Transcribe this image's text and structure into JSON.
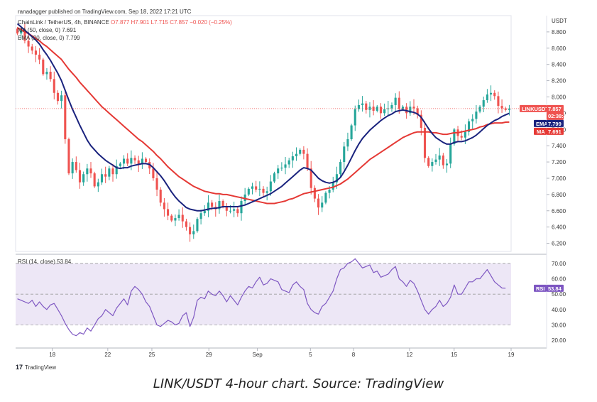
{
  "header": {
    "publisher": "ranadagger published on TradingView.com, Sep 18, 2022 17:21 UTC"
  },
  "legend": {
    "symbol": "ChainLink / TetherUS, 4h, BINANCE",
    "ohlc": "O7.877  H7.901  L7.715  C7.857  −0.020 (−0.25%)",
    "ma": "MA (50, close, 0)  7.691",
    "ema": "EMA (20, close, 0)  7.799",
    "rsi": "RSI (14, close)  53.84"
  },
  "price_axis": {
    "currency": "USDT",
    "ticks": [
      "8.800",
      "8.600",
      "8.400",
      "8.200",
      "8.000",
      "7.800",
      "7.600",
      "7.400",
      "7.200",
      "7.000",
      "6.800",
      "6.600",
      "6.400",
      "6.200"
    ]
  },
  "rsi_axis": {
    "ticks": [
      "70.00",
      "60.00",
      "50.00",
      "40.00",
      "30.00",
      "20.00"
    ]
  },
  "price_labels": {
    "last": {
      "text": "LINKUSDT",
      "value": "7.857",
      "timer": "02:38:47",
      "color": "#ef5350"
    },
    "ema": {
      "text": "EMA",
      "value": "7.799",
      "color": "#1a237e"
    },
    "ma": {
      "text": "MA",
      "value": "7.691",
      "color": "#e53935"
    },
    "rsi": {
      "text": "RSI",
      "value": "53.84",
      "color": "#7e57c2"
    }
  },
  "time_axis": [
    "18",
    "22",
    "25",
    "29",
    "Sep",
    "5",
    "8",
    "12",
    "15",
    "19"
  ],
  "branding": {
    "logo": "TradingView"
  },
  "caption": "LINK/USDT 4-hour chart. Source: TradingView",
  "colors": {
    "up": "#26a69a",
    "down": "#ef5350",
    "ma": "#e53935",
    "ema": "#1a237e",
    "rsi": "#7e57c2",
    "rsi_band": "#ede7f6"
  },
  "chart_data": {
    "type": "candlestick",
    "symbol": "LINK/USDT",
    "interval": "4h",
    "price_ylim": [
      6.1,
      9.0
    ],
    "rsi_ylim": [
      15,
      75
    ],
    "rsi_bands": [
      30,
      50,
      70
    ],
    "x_ticks": [
      "18",
      "22",
      "25",
      "29",
      "Sep",
      "5",
      "8",
      "12",
      "15",
      "19"
    ],
    "close": [
      8.78,
      8.83,
      8.69,
      8.62,
      8.57,
      8.52,
      8.46,
      8.28,
      8.31,
      8.22,
      8.05,
      7.95,
      8.02,
      7.48,
      7.06,
      7.2,
      7.1,
      6.95,
      7.05,
      7.12,
      7.06,
      6.9,
      6.95,
      7.05,
      7.02,
      7.12,
      7.05,
      7.15,
      7.18,
      7.24,
      7.18,
      7.25,
      7.22,
      7.17,
      7.24,
      7.2,
      7.12,
      7.0,
      6.86,
      6.7,
      6.62,
      6.54,
      6.48,
      6.51,
      6.55,
      6.47,
      6.4,
      6.31,
      6.35,
      6.5,
      6.57,
      6.6,
      6.7,
      6.65,
      6.62,
      6.72,
      6.65,
      6.6,
      6.6,
      6.62,
      6.57,
      6.72,
      6.8,
      6.87,
      6.9,
      6.86,
      6.87,
      6.82,
      6.84,
      6.96,
      7.06,
      7.12,
      7.13,
      7.17,
      7.22,
      7.27,
      7.3,
      7.35,
      7.3,
      7.12,
      6.88,
      6.75,
      6.64,
      6.7,
      6.82,
      6.86,
      6.95,
      7.05,
      7.2,
      7.39,
      7.48,
      7.65,
      7.85,
      7.9,
      7.92,
      7.84,
      7.88,
      7.83,
      7.88,
      7.8,
      7.85,
      7.86,
      7.9,
      7.99,
      7.85,
      7.88,
      7.8,
      7.88,
      7.86,
      7.78,
      7.62,
      7.25,
      7.15,
      7.2,
      7.23,
      7.28,
      7.16,
      7.18,
      7.42,
      7.6,
      7.52,
      7.5,
      7.57,
      7.7,
      7.73,
      7.82,
      7.88,
      7.96,
      8.03,
      8.05,
      8.01,
      7.89,
      7.86,
      7.84,
      7.857
    ],
    "rsi": [
      47,
      46,
      45,
      44,
      46,
      42,
      45,
      42,
      40,
      43,
      44,
      40,
      36,
      31,
      27,
      24,
      23,
      25,
      24,
      28,
      26,
      30,
      34,
      36,
      40,
      38,
      36,
      41,
      44,
      47,
      43,
      52,
      55,
      53,
      50,
      45,
      42,
      36,
      30,
      29,
      31,
      33,
      32,
      30,
      31,
      36,
      38,
      29,
      35,
      46,
      48,
      47,
      52,
      50,
      49,
      52,
      49,
      45,
      49,
      46,
      43,
      48,
      52,
      55,
      54,
      58,
      61,
      56,
      57,
      60,
      59,
      58,
      53,
      52,
      51,
      56,
      58,
      55,
      53,
      44,
      40,
      38,
      37,
      42,
      44,
      48,
      52,
      60,
      66,
      67,
      70,
      71,
      73,
      70,
      67,
      68,
      69,
      64,
      65,
      61,
      62,
      63,
      66,
      68,
      60,
      58,
      55,
      59,
      57,
      52,
      46,
      40,
      37,
      40,
      42,
      46,
      42,
      44,
      48,
      56,
      50,
      50,
      54,
      58,
      58,
      60,
      60,
      63,
      66,
      62,
      58,
      56,
      54,
      53.84
    ],
    "ma50": [
      8.85,
      8.83,
      8.8,
      8.78,
      8.75,
      8.72,
      8.69,
      8.65,
      8.62,
      8.58,
      8.54,
      8.5,
      8.46,
      8.4,
      8.34,
      8.29,
      8.24,
      8.18,
      8.13,
      8.08,
      8.03,
      7.98,
      7.93,
      7.88,
      7.84,
      7.8,
      7.76,
      7.72,
      7.68,
      7.64,
      7.6,
      7.56,
      7.52,
      7.48,
      7.45,
      7.41,
      7.37,
      7.33,
      7.28,
      7.24,
      7.19,
      7.14,
      7.1,
      7.06,
      7.02,
      6.99,
      6.96,
      6.93,
      6.9,
      6.88,
      6.86,
      6.84,
      6.83,
      6.82,
      6.81,
      6.81,
      6.8,
      6.8,
      6.79,
      6.78,
      6.77,
      6.76,
      6.75,
      6.74,
      6.73,
      6.72,
      6.71,
      6.7,
      6.69,
      6.69,
      6.69,
      6.7,
      6.71,
      6.72,
      6.74,
      6.75,
      6.77,
      6.79,
      6.81,
      6.82,
      6.83,
      6.84,
      6.85,
      6.86,
      6.87,
      6.88,
      6.89,
      6.91,
      6.93,
      6.96,
      6.99,
      7.03,
      7.07,
      7.11,
      7.15,
      7.19,
      7.23,
      7.26,
      7.29,
      7.32,
      7.35,
      7.38,
      7.41,
      7.44,
      7.47,
      7.5,
      7.52,
      7.54,
      7.56,
      7.57,
      7.57,
      7.57,
      7.57,
      7.56,
      7.56,
      7.55,
      7.54,
      7.54,
      7.55,
      7.56,
      7.56,
      7.57,
      7.58,
      7.59,
      7.6,
      7.61,
      7.63,
      7.64,
      7.66,
      7.67,
      7.68,
      7.68,
      7.68,
      7.69,
      7.691
    ],
    "ema20": [
      8.9,
      8.86,
      8.82,
      8.78,
      8.74,
      8.7,
      8.65,
      8.58,
      8.52,
      8.45,
      8.37,
      8.29,
      8.2,
      8.08,
      7.96,
      7.85,
      7.75,
      7.65,
      7.56,
      7.47,
      7.4,
      7.35,
      7.3,
      7.26,
      7.22,
      7.19,
      7.16,
      7.13,
      7.12,
      7.13,
      7.13,
      7.15,
      7.16,
      7.17,
      7.18,
      7.18,
      7.17,
      7.13,
      7.08,
      7.03,
      6.97,
      6.9,
      6.83,
      6.77,
      6.72,
      6.68,
      6.64,
      6.62,
      6.61,
      6.6,
      6.6,
      6.61,
      6.62,
      6.63,
      6.63,
      6.64,
      6.65,
      6.65,
      6.65,
      6.65,
      6.65,
      6.66,
      6.67,
      6.69,
      6.71,
      6.73,
      6.75,
      6.77,
      6.79,
      6.81,
      6.84,
      6.87,
      6.9,
      6.94,
      6.98,
      7.02,
      7.06,
      7.1,
      7.13,
      7.12,
      7.1,
      7.05,
      7.0,
      6.97,
      6.95,
      6.94,
      6.95,
      6.97,
      7.01,
      7.08,
      7.16,
      7.25,
      7.34,
      7.42,
      7.49,
      7.54,
      7.59,
      7.63,
      7.67,
      7.71,
      7.74,
      7.77,
      7.79,
      7.82,
      7.83,
      7.84,
      7.83,
      7.82,
      7.81,
      7.79,
      7.75,
      7.68,
      7.61,
      7.55,
      7.5,
      7.47,
      7.44,
      7.42,
      7.42,
      7.44,
      7.45,
      7.45,
      7.46,
      7.48,
      7.5,
      7.53,
      7.57,
      7.61,
      7.65,
      7.68,
      7.71,
      7.73,
      7.76,
      7.78,
      7.799
    ]
  }
}
